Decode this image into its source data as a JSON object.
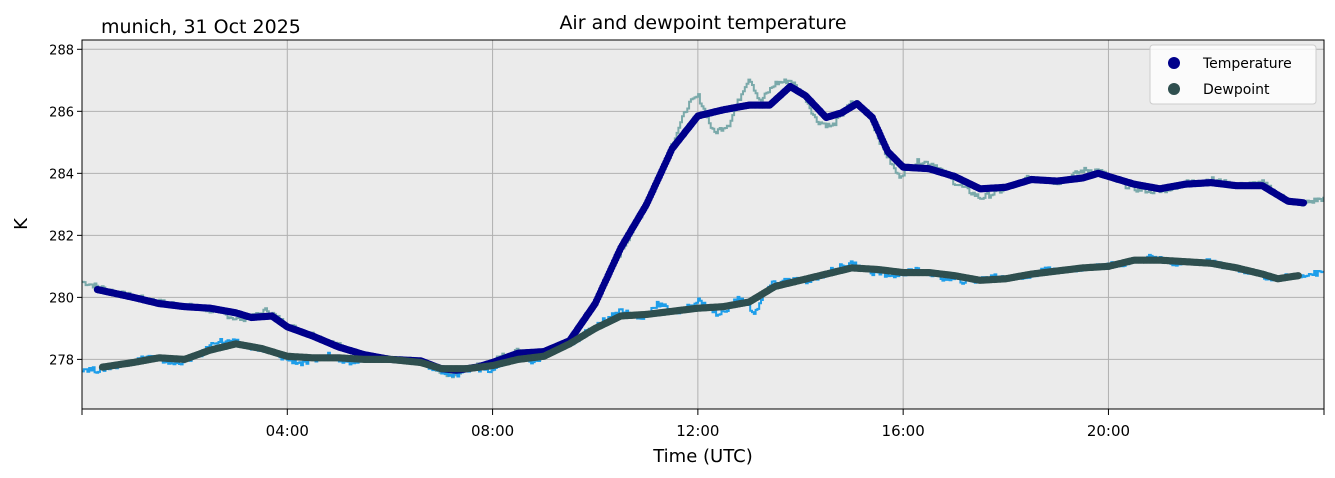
{
  "chart_data": {
    "type": "line",
    "title": "Air and dewpoint temperature",
    "subtitle": "munich, 31 Oct 2025",
    "xlabel": "Time (UTC)",
    "ylabel": "K",
    "xlim_hours": [
      0,
      24.2
    ],
    "ylim": [
      276.4,
      288.3
    ],
    "x_ticks": [
      {
        "hour": 4,
        "label": "04:00"
      },
      {
        "hour": 8,
        "label": "08:00"
      },
      {
        "hour": 12,
        "label": "12:00"
      },
      {
        "hour": 16,
        "label": "16:00"
      },
      {
        "hour": 20,
        "label": "20:00"
      }
    ],
    "y_ticks": [
      {
        "value": 278,
        "label": "278"
      },
      {
        "value": 280,
        "label": "280"
      },
      {
        "value": 282,
        "label": "282"
      },
      {
        "value": 284,
        "label": "284"
      },
      {
        "value": 286,
        "label": "286"
      },
      {
        "value": 288,
        "label": "288"
      }
    ],
    "grid": true,
    "legend_position": "top-right",
    "series": [
      {
        "name": "Temperature",
        "marker_color": "#00008b",
        "raw_color": "#7aa9aa",
        "smoothed": [
          [
            0.3,
            280.25
          ],
          [
            1.0,
            280.0
          ],
          [
            1.5,
            279.8
          ],
          [
            2.0,
            279.7
          ],
          [
            2.5,
            279.65
          ],
          [
            3.0,
            279.5
          ],
          [
            3.3,
            279.35
          ],
          [
            3.7,
            279.4
          ],
          [
            4.0,
            279.05
          ],
          [
            4.5,
            278.75
          ],
          [
            5.0,
            278.4
          ],
          [
            5.5,
            278.15
          ],
          [
            6.0,
            278.0
          ],
          [
            6.6,
            277.95
          ],
          [
            7.0,
            277.7
          ],
          [
            7.3,
            277.65
          ],
          [
            7.7,
            277.75
          ],
          [
            8.0,
            277.9
          ],
          [
            8.5,
            278.2
          ],
          [
            9.0,
            278.25
          ],
          [
            9.5,
            278.6
          ],
          [
            10.0,
            279.8
          ],
          [
            10.5,
            281.6
          ],
          [
            11.0,
            283.0
          ],
          [
            11.5,
            284.8
          ],
          [
            12.0,
            285.85
          ],
          [
            12.5,
            286.05
          ],
          [
            13.0,
            286.2
          ],
          [
            13.4,
            286.2
          ],
          [
            13.8,
            286.8
          ],
          [
            14.1,
            286.5
          ],
          [
            14.5,
            285.8
          ],
          [
            14.8,
            285.95
          ],
          [
            15.1,
            286.25
          ],
          [
            15.4,
            285.8
          ],
          [
            15.7,
            284.7
          ],
          [
            16.0,
            284.2
          ],
          [
            16.5,
            284.15
          ],
          [
            17.0,
            283.9
          ],
          [
            17.5,
            283.5
          ],
          [
            18.0,
            283.55
          ],
          [
            18.5,
            283.8
          ],
          [
            19.0,
            283.75
          ],
          [
            19.5,
            283.85
          ],
          [
            19.8,
            284.0
          ],
          [
            20.2,
            283.8
          ],
          [
            20.5,
            283.65
          ],
          [
            21.0,
            283.5
          ],
          [
            21.5,
            283.65
          ],
          [
            22.0,
            283.7
          ],
          [
            22.5,
            283.6
          ],
          [
            23.0,
            283.6
          ],
          [
            23.3,
            283.3
          ],
          [
            23.5,
            283.1
          ],
          [
            23.8,
            283.05
          ]
        ],
        "raw": [
          [
            0.0,
            280.5
          ],
          [
            0.3,
            280.35
          ],
          [
            0.8,
            280.1
          ],
          [
            1.5,
            279.85
          ],
          [
            2.0,
            279.75
          ],
          [
            2.7,
            279.5
          ],
          [
            3.0,
            279.3
          ],
          [
            3.3,
            279.35
          ],
          [
            3.6,
            279.6
          ],
          [
            4.0,
            279.1
          ],
          [
            4.5,
            278.8
          ],
          [
            5.0,
            278.45
          ],
          [
            5.5,
            278.1
          ],
          [
            6.0,
            278.0
          ],
          [
            6.6,
            277.95
          ],
          [
            7.0,
            277.6
          ],
          [
            7.2,
            277.5
          ],
          [
            7.7,
            277.8
          ],
          [
            8.0,
            278.0
          ],
          [
            8.5,
            278.3
          ],
          [
            9.0,
            278.15
          ],
          [
            9.5,
            278.6
          ],
          [
            10.0,
            279.9
          ],
          [
            10.5,
            281.5
          ],
          [
            11.0,
            283.0
          ],
          [
            11.5,
            285.0
          ],
          [
            11.8,
            286.2
          ],
          [
            12.0,
            286.5
          ],
          [
            12.3,
            285.3
          ],
          [
            12.6,
            285.6
          ],
          [
            12.9,
            286.8
          ],
          [
            13.0,
            287.1
          ],
          [
            13.2,
            286.3
          ],
          [
            13.5,
            286.9
          ],
          [
            13.8,
            287.0
          ],
          [
            14.1,
            286.4
          ],
          [
            14.3,
            285.7
          ],
          [
            14.6,
            285.5
          ],
          [
            15.0,
            286.3
          ],
          [
            15.3,
            286.0
          ],
          [
            15.6,
            284.8
          ],
          [
            15.9,
            283.9
          ],
          [
            16.3,
            284.4
          ],
          [
            16.6,
            284.3
          ],
          [
            17.0,
            283.7
          ],
          [
            17.5,
            283.2
          ],
          [
            18.0,
            283.5
          ],
          [
            18.5,
            283.9
          ],
          [
            19.0,
            283.7
          ],
          [
            19.5,
            284.1
          ],
          [
            19.8,
            284.1
          ],
          [
            20.2,
            283.7
          ],
          [
            20.5,
            283.5
          ],
          [
            21.0,
            283.4
          ],
          [
            21.5,
            283.7
          ],
          [
            22.0,
            283.8
          ],
          [
            22.5,
            283.6
          ],
          [
            23.0,
            283.7
          ],
          [
            23.3,
            283.3
          ],
          [
            23.7,
            283.0
          ],
          [
            24.2,
            283.2
          ]
        ]
      },
      {
        "name": "Dewpoint",
        "marker_color": "#2f4f4f",
        "raw_color": "#1e9eea",
        "smoothed": [
          [
            0.4,
            277.75
          ],
          [
            1.0,
            277.9
          ],
          [
            1.5,
            278.05
          ],
          [
            2.0,
            278.0
          ],
          [
            2.5,
            278.3
          ],
          [
            3.0,
            278.5
          ],
          [
            3.5,
            278.35
          ],
          [
            4.0,
            278.1
          ],
          [
            4.5,
            278.05
          ],
          [
            5.0,
            278.05
          ],
          [
            5.5,
            278.0
          ],
          [
            6.0,
            278.0
          ],
          [
            6.6,
            277.9
          ],
          [
            7.0,
            277.7
          ],
          [
            7.5,
            277.7
          ],
          [
            8.0,
            277.8
          ],
          [
            8.5,
            278.0
          ],
          [
            9.0,
            278.1
          ],
          [
            9.5,
            278.5
          ],
          [
            10.0,
            279.0
          ],
          [
            10.5,
            279.4
          ],
          [
            11.0,
            279.45
          ],
          [
            11.5,
            279.55
          ],
          [
            12.0,
            279.65
          ],
          [
            12.5,
            279.7
          ],
          [
            13.0,
            279.85
          ],
          [
            13.5,
            280.35
          ],
          [
            14.0,
            280.55
          ],
          [
            14.5,
            280.75
          ],
          [
            15.0,
            280.95
          ],
          [
            15.5,
            280.9
          ],
          [
            16.0,
            280.8
          ],
          [
            16.5,
            280.8
          ],
          [
            17.0,
            280.7
          ],
          [
            17.5,
            280.55
          ],
          [
            18.0,
            280.6
          ],
          [
            18.5,
            280.75
          ],
          [
            19.0,
            280.85
          ],
          [
            19.5,
            280.95
          ],
          [
            20.0,
            281.0
          ],
          [
            20.5,
            281.2
          ],
          [
            21.0,
            281.2
          ],
          [
            21.5,
            281.15
          ],
          [
            22.0,
            281.1
          ],
          [
            22.5,
            280.95
          ],
          [
            23.0,
            280.75
          ],
          [
            23.3,
            280.6
          ],
          [
            23.7,
            280.7
          ]
        ],
        "raw": [
          [
            0.0,
            277.7
          ],
          [
            0.3,
            277.65
          ],
          [
            0.8,
            277.85
          ],
          [
            1.3,
            278.1
          ],
          [
            1.8,
            277.85
          ],
          [
            2.3,
            278.15
          ],
          [
            2.6,
            278.6
          ],
          [
            3.0,
            278.55
          ],
          [
            3.5,
            278.3
          ],
          [
            4.0,
            278.0
          ],
          [
            4.3,
            277.85
          ],
          [
            4.8,
            278.15
          ],
          [
            5.2,
            277.9
          ],
          [
            5.6,
            278.1
          ],
          [
            6.0,
            278.0
          ],
          [
            6.6,
            277.9
          ],
          [
            7.0,
            277.6
          ],
          [
            7.2,
            277.45
          ],
          [
            7.6,
            277.75
          ],
          [
            8.0,
            277.6
          ],
          [
            8.4,
            278.2
          ],
          [
            8.8,
            277.9
          ],
          [
            9.2,
            278.3
          ],
          [
            9.6,
            278.6
          ],
          [
            10.0,
            279.1
          ],
          [
            10.5,
            279.6
          ],
          [
            10.9,
            279.3
          ],
          [
            11.2,
            279.8
          ],
          [
            11.6,
            279.5
          ],
          [
            12.0,
            279.9
          ],
          [
            12.4,
            279.4
          ],
          [
            12.8,
            280.0
          ],
          [
            13.1,
            279.5
          ],
          [
            13.4,
            280.4
          ],
          [
            13.8,
            280.6
          ],
          [
            14.2,
            280.5
          ],
          [
            14.6,
            280.9
          ],
          [
            15.0,
            281.1
          ],
          [
            15.4,
            280.8
          ],
          [
            15.8,
            280.7
          ],
          [
            16.3,
            280.9
          ],
          [
            16.8,
            280.6
          ],
          [
            17.3,
            280.5
          ],
          [
            17.8,
            280.7
          ],
          [
            18.3,
            280.6
          ],
          [
            18.8,
            280.9
          ],
          [
            19.3,
            280.9
          ],
          [
            19.8,
            281.0
          ],
          [
            20.3,
            281.1
          ],
          [
            20.8,
            281.3
          ],
          [
            21.3,
            281.1
          ],
          [
            21.8,
            281.2
          ],
          [
            22.3,
            281.0
          ],
          [
            22.8,
            280.8
          ],
          [
            23.2,
            280.6
          ],
          [
            23.6,
            280.7
          ],
          [
            24.2,
            280.8
          ]
        ]
      }
    ]
  }
}
